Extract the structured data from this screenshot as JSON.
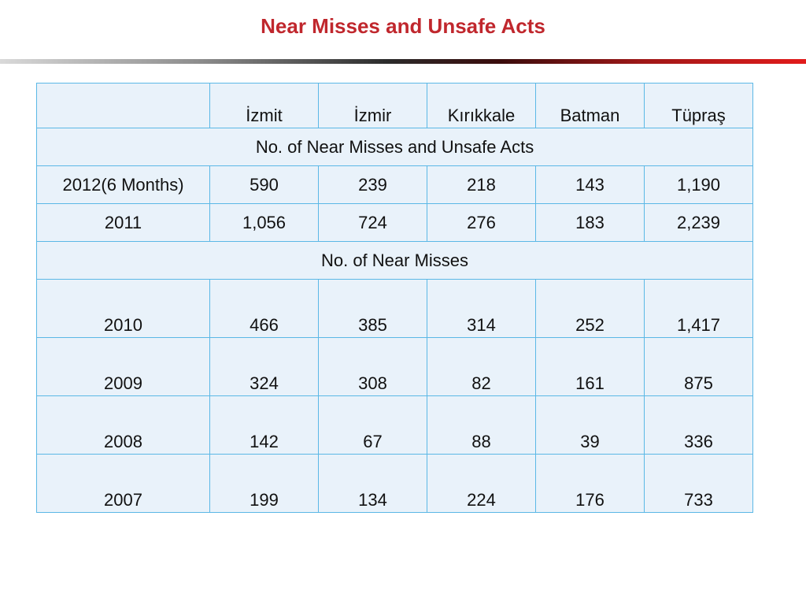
{
  "title": "Near Misses and Unsafe Acts",
  "colors": {
    "title": "#c0272d",
    "table_bg": "#e9f2fa",
    "table_border": "#5bb8e6"
  },
  "table": {
    "headers": [
      "",
      "İzmit",
      "İzmir",
      "Kırıkkale",
      "Batman",
      "Tüpraş"
    ],
    "sections": [
      {
        "label": "No. of  Near Misses and Unsafe Acts",
        "rows": [
          [
            "2012(6 Months)",
            "590",
            "239",
            "218",
            "143",
            "1,190"
          ],
          [
            "2011",
            "1,056",
            "724",
            "276",
            "183",
            "2,239"
          ]
        ]
      },
      {
        "label": "No. of  Near Misses",
        "rows": [
          [
            "2010",
            "466",
            "385",
            "314",
            "252",
            "1,417"
          ],
          [
            "2009",
            "324",
            "308",
            "82",
            "161",
            "875"
          ],
          [
            "2008",
            "142",
            "67",
            "88",
            "39",
            "336"
          ],
          [
            "2007",
            "199",
            "134",
            "224",
            "176",
            "733"
          ]
        ]
      }
    ]
  }
}
